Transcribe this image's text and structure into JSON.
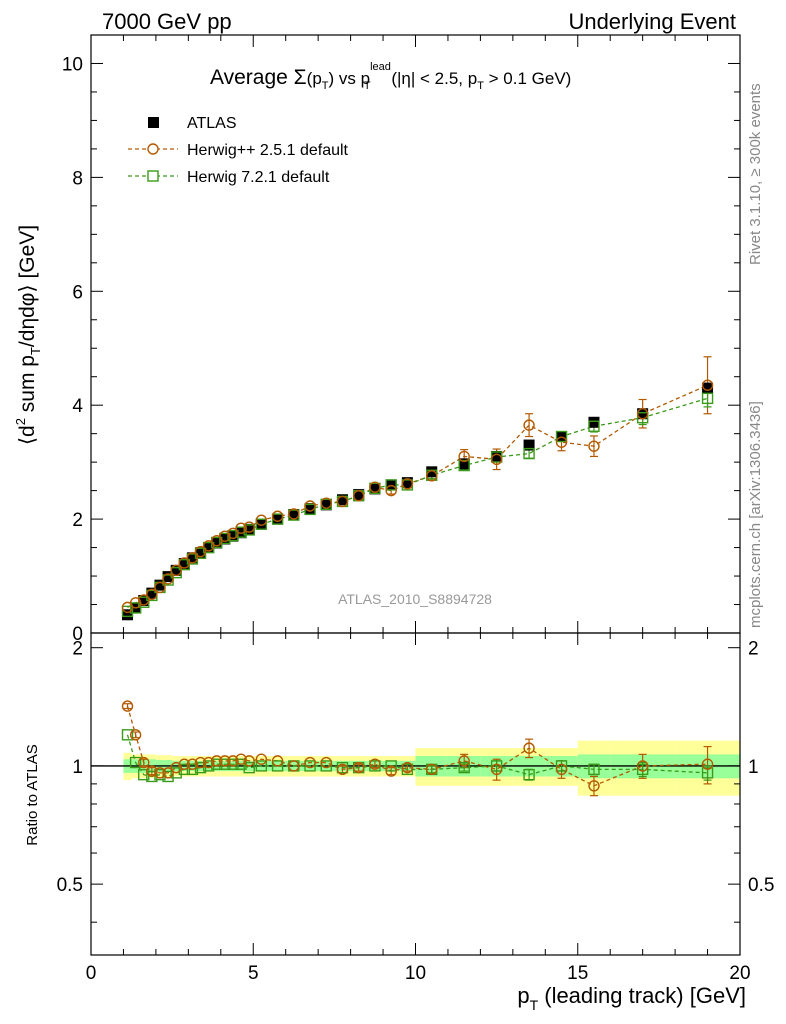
{
  "header": {
    "left": "7000 GeV pp",
    "right": "Underlying Event"
  },
  "side_labels": {
    "rivet": "Rivet 3.1.10, ≥ 300k events",
    "mcplots": "mcplots.cern.ch [arXiv:1306.3436]"
  },
  "colors": {
    "data": "#000000",
    "herwigpp": "#b35900",
    "herwig7": "#3a9a1a",
    "band_inner": "#99ff99",
    "band_outer": "#ffff99"
  },
  "chart_data": [
    {
      "type": "scatter",
      "panel": "main",
      "title": {
        "prefix": "Average ",
        "sigma": "Σ",
        "sigma_arg": "(p",
        "sigma_sub": "T",
        "sigma_close": ")",
        "vs": " vs p",
        "vs_sub": "T",
        "vs_sup": "lead",
        "cut": " (|η| < 2.5, p",
        "cut_sub": "T",
        "cut_end": " > 0.1 GeV)"
      },
      "ylabel": "⟨d² sum pₜ/dηdφ⟩ [GeV]",
      "ylabel_parts": {
        "a": "⟨d",
        "sup": "2",
        "b": " sum p",
        "sub": "T",
        "c": "/dηdφ⟩ [GeV]"
      },
      "xlim": [
        0,
        20
      ],
      "ylim": [
        0,
        10.5
      ],
      "yticks": [
        0,
        2,
        4,
        6,
        8,
        10
      ],
      "ytick_labels": [
        "0",
        "2",
        "4",
        "6",
        "8",
        "10"
      ],
      "watermark": "ATLAS_2010_S8894728",
      "legend": {
        "position": "top-left",
        "entries": [
          "ATLAS",
          "Herwig++ 2.5.1 default",
          "Herwig 7.2.1 default"
        ]
      },
      "x": [
        1.125,
        1.375,
        1.625,
        1.875,
        2.125,
        2.375,
        2.625,
        2.875,
        3.125,
        3.375,
        3.625,
        3.875,
        4.125,
        4.375,
        4.625,
        4.875,
        5.25,
        5.75,
        6.25,
        6.75,
        7.25,
        7.75,
        8.25,
        8.75,
        9.25,
        9.75,
        10.5,
        11.5,
        12.5,
        13.5,
        14.5,
        15.5,
        17.0,
        19.0
      ],
      "series": [
        {
          "name": "ATLAS",
          "marker": "filled-square",
          "values": [
            0.32,
            0.44,
            0.57,
            0.7,
            0.84,
            0.99,
            1.1,
            1.22,
            1.32,
            1.41,
            1.5,
            1.58,
            1.65,
            1.7,
            1.76,
            1.82,
            1.91,
            2.0,
            2.08,
            2.18,
            2.25,
            2.34,
            2.43,
            2.53,
            2.6,
            2.64,
            2.83,
            2.97,
            3.1,
            3.3,
            3.45,
            3.7,
            3.85,
            4.3
          ],
          "errors": [
            0,
            0,
            0,
            0,
            0,
            0,
            0,
            0,
            0,
            0,
            0,
            0,
            0,
            0,
            0,
            0,
            0,
            0,
            0,
            0,
            0,
            0,
            0,
            0,
            0,
            0,
            0,
            0,
            0,
            0,
            0,
            0,
            0,
            0
          ]
        },
        {
          "name": "Herwig++ 2.5.1 default",
          "marker": "open-circle",
          "values": [
            0.45,
            0.53,
            0.58,
            0.68,
            0.8,
            0.95,
            1.1,
            1.23,
            1.32,
            1.43,
            1.53,
            1.62,
            1.7,
            1.75,
            1.84,
            1.86,
            1.98,
            2.05,
            2.09,
            2.23,
            2.28,
            2.31,
            2.41,
            2.56,
            2.5,
            2.62,
            2.76,
            3.1,
            3.05,
            3.65,
            3.35,
            3.28,
            3.85,
            4.35
          ],
          "errors": [
            0.02,
            0.02,
            0.02,
            0.02,
            0.02,
            0.02,
            0.02,
            0.02,
            0.02,
            0.02,
            0.02,
            0.02,
            0.02,
            0.02,
            0.02,
            0.02,
            0.03,
            0.03,
            0.03,
            0.04,
            0.04,
            0.04,
            0.05,
            0.05,
            0.06,
            0.06,
            0.07,
            0.12,
            0.18,
            0.2,
            0.15,
            0.18,
            0.25,
            0.5
          ]
        },
        {
          "name": "Herwig 7.2.1 default",
          "marker": "open-square",
          "values": [
            0.38,
            0.44,
            0.54,
            0.66,
            0.8,
            0.93,
            1.06,
            1.2,
            1.3,
            1.4,
            1.5,
            1.59,
            1.66,
            1.71,
            1.77,
            1.81,
            1.91,
            2.0,
            2.07,
            2.17,
            2.26,
            2.31,
            2.41,
            2.54,
            2.6,
            2.6,
            2.77,
            2.94,
            3.09,
            3.15,
            3.45,
            3.63,
            3.78,
            4.12
          ],
          "errors": [
            0.02,
            0.02,
            0.02,
            0.02,
            0.02,
            0.02,
            0.02,
            0.02,
            0.02,
            0.02,
            0.02,
            0.02,
            0.02,
            0.02,
            0.02,
            0.02,
            0.02,
            0.03,
            0.03,
            0.03,
            0.03,
            0.04,
            0.04,
            0.04,
            0.05,
            0.05,
            0.06,
            0.07,
            0.08,
            0.08,
            0.08,
            0.1,
            0.12,
            0.15
          ]
        }
      ]
    },
    {
      "type": "scatter",
      "panel": "ratio",
      "ylabel": "Ratio to ATLAS",
      "xlabel": "pₜ (leading track) [GeV]",
      "xlabel_parts": {
        "a": "p",
        "sub": "T",
        "b": " (leading track) [GeV]"
      },
      "xlim": [
        0,
        20
      ],
      "ylim": [
        0.33,
        2.18
      ],
      "yticks": [
        0.5,
        1,
        2
      ],
      "ytick_labels": [
        "0.5",
        "1",
        "2"
      ],
      "ytick_labels_right": [
        "0.5",
        "1",
        "2"
      ],
      "xticks": [
        0,
        5,
        10,
        15,
        20
      ],
      "xtick_labels": [
        "0",
        "5",
        "10",
        "15",
        "20"
      ],
      "band_edges": [
        1.0,
        1.25,
        1.5,
        1.75,
        2.0,
        2.25,
        2.5,
        2.75,
        3.0,
        3.25,
        3.5,
        3.75,
        4.0,
        4.25,
        4.5,
        4.75,
        5.0,
        5.5,
        6.0,
        6.5,
        7.0,
        7.5,
        8.0,
        8.5,
        9.0,
        9.5,
        10.0,
        11.0,
        12.0,
        13.0,
        14.0,
        15.0,
        16.0,
        18.0,
        20.0
      ],
      "band_inner": [
        0.04,
        0.04,
        0.04,
        0.04,
        0.035,
        0.035,
        0.03,
        0.03,
        0.03,
        0.03,
        0.03,
        0.03,
        0.03,
        0.03,
        0.03,
        0.03,
        0.03,
        0.03,
        0.03,
        0.03,
        0.03,
        0.03,
        0.03,
        0.03,
        0.03,
        0.03,
        0.06,
        0.06,
        0.06,
        0.06,
        0.06,
        0.07,
        0.07,
        0.07
      ],
      "band_outer": [
        0.08,
        0.07,
        0.07,
        0.07,
        0.065,
        0.065,
        0.06,
        0.06,
        0.06,
        0.06,
        0.06,
        0.06,
        0.06,
        0.06,
        0.06,
        0.06,
        0.06,
        0.06,
        0.06,
        0.06,
        0.06,
        0.06,
        0.06,
        0.06,
        0.06,
        0.06,
        0.11,
        0.11,
        0.11,
        0.11,
        0.11,
        0.16,
        0.16,
        0.16
      ],
      "series": [
        {
          "name": "Herwig++ 2.5.1 default",
          "marker": "open-circle",
          "values": [
            1.42,
            1.2,
            1.02,
            0.97,
            0.96,
            0.96,
            0.99,
            1.01,
            1.01,
            1.02,
            1.02,
            1.03,
            1.03,
            1.03,
            1.04,
            1.03,
            1.04,
            1.03,
            1.0,
            1.02,
            1.02,
            0.98,
            0.99,
            1.01,
            0.97,
            0.99,
            0.98,
            1.03,
            0.98,
            1.11,
            0.98,
            0.89,
            1.0,
            1.01
          ],
          "errors": [
            0.02,
            0.02,
            0.02,
            0.02,
            0.01,
            0.01,
            0.01,
            0.01,
            0.01,
            0.01,
            0.01,
            0.01,
            0.01,
            0.01,
            0.01,
            0.01,
            0.01,
            0.01,
            0.01,
            0.01,
            0.01,
            0.02,
            0.02,
            0.02,
            0.02,
            0.02,
            0.02,
            0.04,
            0.06,
            0.06,
            0.05,
            0.05,
            0.07,
            0.11
          ]
        },
        {
          "name": "Herwig 7.2.1 default",
          "marker": "open-square",
          "values": [
            1.2,
            1.02,
            0.95,
            0.94,
            0.95,
            0.94,
            0.96,
            0.98,
            0.98,
            0.99,
            1.0,
            1.01,
            1.01,
            1.01,
            1.01,
            0.99,
            1.0,
            1.0,
            1.0,
            1.0,
            1.0,
            0.99,
            0.99,
            1.0,
            1.0,
            0.98,
            0.98,
            0.99,
            1.0,
            0.95,
            1.0,
            0.98,
            0.98,
            0.96
          ],
          "errors": [
            0.01,
            0.01,
            0.01,
            0.01,
            0.01,
            0.01,
            0.01,
            0.01,
            0.01,
            0.01,
            0.01,
            0.01,
            0.01,
            0.01,
            0.01,
            0.01,
            0.01,
            0.01,
            0.01,
            0.01,
            0.01,
            0.01,
            0.01,
            0.01,
            0.01,
            0.01,
            0.02,
            0.02,
            0.03,
            0.03,
            0.03,
            0.03,
            0.04,
            0.04
          ]
        }
      ]
    }
  ]
}
